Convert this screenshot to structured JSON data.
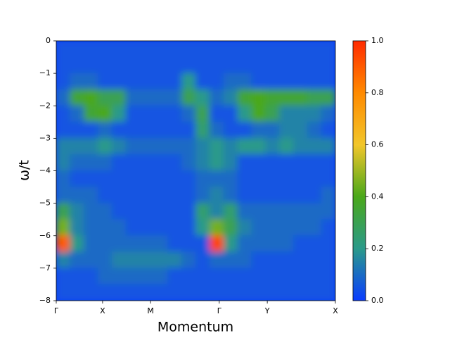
{
  "chart_data": {
    "type": "heatmap",
    "xlabel": "Momentum",
    "ylabel": "ω/t",
    "xlim": [
      0,
      1
    ],
    "xticks": [
      {
        "value": 0,
        "label": "Γ"
      },
      {
        "value": 0.166,
        "label": "X"
      },
      {
        "value": 0.338,
        "label": "M"
      },
      {
        "value": 0.584,
        "label": "Γ"
      },
      {
        "value": 0.756,
        "label": "Y"
      },
      {
        "value": 1,
        "label": "X"
      }
    ],
    "ylim": [
      -8,
      0
    ],
    "yticks": [
      {
        "value": -8,
        "label": "−8"
      },
      {
        "value": -7,
        "label": "−7"
      },
      {
        "value": -6,
        "label": "−6"
      },
      {
        "value": -5,
        "label": "−5"
      },
      {
        "value": -4,
        "label": "−4"
      },
      {
        "value": -3,
        "label": "−3"
      },
      {
        "value": -2,
        "label": "−2"
      },
      {
        "value": -1,
        "label": "−1"
      },
      0
    ],
    "clim": [
      0,
      1
    ],
    "cticks": [
      {
        "value": 0,
        "label": "0.0"
      },
      0.2,
      0.4,
      0.6,
      0.8,
      {
        "value": 1,
        "label": "1.0"
      }
    ],
    "colormap": [
      {
        "value": 0,
        "color": "#0a3cff"
      },
      {
        "value": 0.2,
        "color": "#2a9a8a"
      },
      {
        "value": 0.4,
        "color": "#4aa81a"
      },
      {
        "value": 0.6,
        "color": "#f2c62a"
      },
      {
        "value": 0.8,
        "color": "#ff8a00"
      },
      {
        "value": 1,
        "color": "#ff2a00"
      }
    ],
    "z": [
      [
        0.05,
        0.05,
        0.05,
        0.05,
        0.05,
        0.05,
        0.05,
        0.05,
        0.05,
        0.05,
        0.05,
        0.05,
        0.05,
        0.05,
        0.05,
        0.05,
        0.05,
        0.05,
        0.05,
        0.05
      ],
      [
        0.05,
        0.05,
        0.05,
        0.05,
        0.05,
        0.05,
        0.05,
        0.05,
        0.05,
        0.05,
        0.05,
        0.05,
        0.05,
        0.05,
        0.05,
        0.05,
        0.05,
        0.05,
        0.05,
        0.05
      ],
      [
        0.05,
        0.1,
        0.1,
        0.05,
        0.05,
        0.05,
        0.05,
        0.05,
        0.05,
        0.2,
        0.05,
        0.05,
        0.1,
        0.1,
        0.05,
        0.05,
        0.05,
        0.05,
        0.05,
        0.05
      ],
      [
        0.1,
        0.35,
        0.4,
        0.3,
        0.3,
        0.1,
        0.1,
        0.1,
        0.1,
        0.3,
        0.2,
        0.1,
        0.15,
        0.35,
        0.4,
        0.35,
        0.35,
        0.35,
        0.3,
        0.3
      ],
      [
        0.05,
        0.1,
        0.35,
        0.4,
        0.2,
        0.05,
        0.05,
        0.05,
        0.05,
        0.1,
        0.3,
        0.05,
        0.05,
        0.2,
        0.4,
        0.3,
        0.15,
        0.15,
        0.15,
        0.1
      ],
      [
        0.05,
        0.05,
        0.05,
        0.1,
        0.05,
        0.05,
        0.05,
        0.05,
        0.05,
        0.05,
        0.25,
        0.1,
        0.05,
        0.05,
        0.1,
        0.1,
        0.15,
        0.15,
        0.1,
        0.05
      ],
      [
        0.15,
        0.15,
        0.15,
        0.2,
        0.15,
        0.1,
        0.1,
        0.1,
        0.1,
        0.1,
        0.15,
        0.2,
        0.15,
        0.2,
        0.2,
        0.15,
        0.2,
        0.15,
        0.15,
        0.15
      ],
      [
        0.15,
        0.1,
        0.1,
        0.1,
        0.05,
        0.05,
        0.05,
        0.05,
        0.05,
        0.1,
        0.15,
        0.2,
        0.15,
        0.05,
        0.05,
        0.05,
        0.05,
        0.05,
        0.05,
        0.05
      ],
      [
        0.1,
        0.05,
        0.05,
        0.05,
        0.05,
        0.05,
        0.05,
        0.05,
        0.05,
        0.05,
        0.1,
        0.1,
        0.1,
        0.05,
        0.05,
        0.05,
        0.05,
        0.05,
        0.05,
        0.05
      ],
      [
        0.1,
        0.1,
        0.1,
        0.05,
        0.05,
        0.05,
        0.05,
        0.05,
        0.05,
        0.05,
        0.1,
        0.15,
        0.1,
        0.05,
        0.05,
        0.05,
        0.05,
        0.05,
        0.05,
        0.1
      ],
      [
        0.3,
        0.15,
        0.1,
        0.1,
        0.05,
        0.05,
        0.05,
        0.05,
        0.05,
        0.05,
        0.25,
        0.15,
        0.25,
        0.1,
        0.1,
        0.1,
        0.1,
        0.1,
        0.1,
        0.1
      ],
      [
        0.45,
        0.15,
        0.1,
        0.1,
        0.1,
        0.05,
        0.05,
        0.05,
        0.05,
        0.05,
        0.2,
        0.45,
        0.3,
        0.15,
        0.1,
        0.1,
        0.1,
        0.1,
        0.1,
        0.05
      ],
      [
        0.9,
        0.2,
        0.1,
        0.1,
        0.1,
        0.1,
        0.1,
        0.1,
        0.05,
        0.05,
        0.05,
        0.95,
        0.2,
        0.1,
        0.1,
        0.1,
        0.1,
        0.05,
        0.05,
        0.05
      ],
      [
        0.15,
        0.1,
        0.1,
        0.1,
        0.15,
        0.15,
        0.15,
        0.15,
        0.15,
        0.1,
        0.05,
        0.1,
        0.1,
        0.1,
        0.05,
        0.05,
        0.05,
        0.05,
        0.05,
        0.05
      ],
      [
        0.05,
        0.05,
        0.05,
        0.1,
        0.1,
        0.1,
        0.1,
        0.1,
        0.05,
        0.05,
        0.05,
        0.05,
        0.05,
        0.05,
        0.05,
        0.05,
        0.05,
        0.05,
        0.05,
        0.05
      ],
      [
        0.05,
        0.05,
        0.05,
        0.05,
        0.05,
        0.05,
        0.05,
        0.05,
        0.05,
        0.05,
        0.05,
        0.05,
        0.05,
        0.05,
        0.05,
        0.05,
        0.05,
        0.05,
        0.05,
        0.05
      ]
    ]
  }
}
